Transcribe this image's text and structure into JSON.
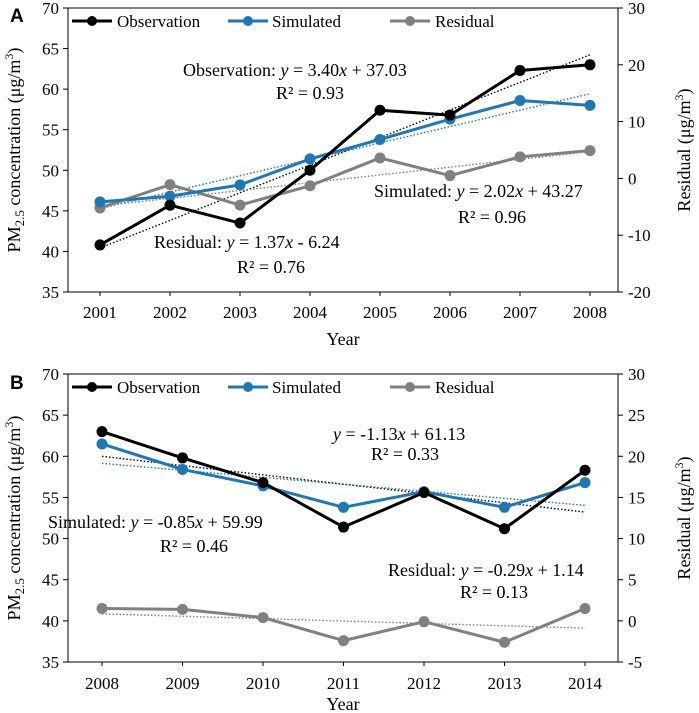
{
  "chart_data": [
    {
      "panel": "A",
      "type": "line",
      "categories": [
        "2001",
        "2002",
        "2003",
        "2004",
        "2005",
        "2006",
        "2007",
        "2008"
      ],
      "xlabel": "Year",
      "ylabel_main": "PM",
      "ylabel_sub": "2.5",
      "ylabel_rest": " concentration (μg/m",
      "ylabel_sup": "3",
      "ylabel_end": ")",
      "ylabel_right": "Residual (μg/m",
      "ylabel_right_sup": "3",
      "ylabel_right_end": ")",
      "ylim": [
        35,
        70
      ],
      "yticks": [
        "35",
        "40",
        "45",
        "50",
        "55",
        "60",
        "65",
        "70"
      ],
      "y2lim": [
        -20,
        30
      ],
      "y2ticks": [
        "-20",
        "-10",
        "0",
        "10",
        "20",
        "30"
      ],
      "series": [
        {
          "name": "Observation",
          "axis": "left",
          "color": "#000000",
          "values": [
            40.8,
            45.7,
            43.5,
            50.0,
            57.4,
            56.8,
            62.3,
            63.0
          ]
        },
        {
          "name": "Simulated",
          "axis": "left",
          "color": "#1f77b4",
          "values": [
            46.1,
            46.8,
            48.2,
            51.4,
            53.8,
            56.3,
            58.6,
            58.0
          ]
        },
        {
          "name": "Residual",
          "axis": "right",
          "color": "#808080",
          "values": [
            -5.2,
            -1.1,
            -4.7,
            -1.3,
            3.6,
            0.5,
            3.8,
            4.9
          ]
        }
      ],
      "trendlines": [
        {
          "series": "Observation",
          "axis": "left",
          "color": "#000000",
          "slope": 3.4,
          "intercept": 37.03
        },
        {
          "series": "Simulated",
          "axis": "left",
          "color": "#1f77b4",
          "slope": 2.02,
          "intercept": 43.27
        },
        {
          "series": "Residual",
          "axis": "right",
          "color": "#808080",
          "slope": 1.37,
          "intercept": -6.24
        }
      ],
      "annotations": [
        {
          "label": "Observation:",
          "eq_slope": "3.40",
          "eq_intercept": "+ 37.03",
          "r2": "R² = 0.93"
        },
        {
          "label": "Simulated:",
          "eq_slope": "2.02",
          "eq_intercept": "+ 43.27",
          "r2": "R² = 0.96"
        },
        {
          "label": "Residual:",
          "eq_slope": "1.37",
          "eq_intercept": "- 6.24",
          "r2": "R² = 0.76"
        }
      ]
    },
    {
      "panel": "B",
      "type": "line",
      "categories": [
        "2008",
        "2009",
        "2010",
        "2011",
        "2012",
        "2013",
        "2014"
      ],
      "xlabel": "Year",
      "ylabel_main": "PM",
      "ylabel_sub": "2.5",
      "ylabel_rest": " concentration (μg/m",
      "ylabel_sup": "3",
      "ylabel_end": ")",
      "ylabel_right": "Residual (μg/m",
      "ylabel_right_sup": "3",
      "ylabel_right_end": ")",
      "ylim": [
        35,
        70
      ],
      "yticks": [
        "35",
        "40",
        "45",
        "50",
        "55",
        "60",
        "65",
        "70"
      ],
      "y2lim": [
        -5,
        30
      ],
      "y2ticks": [
        "-5",
        "0",
        "5",
        "10",
        "15",
        "20",
        "25",
        "30"
      ],
      "series": [
        {
          "name": "Observation",
          "axis": "left",
          "color": "#000000",
          "values": [
            63.0,
            59.8,
            56.8,
            51.4,
            55.6,
            51.2,
            58.3
          ]
        },
        {
          "name": "Simulated",
          "axis": "left",
          "color": "#1f77b4",
          "values": [
            61.5,
            58.4,
            56.4,
            53.8,
            55.7,
            53.8,
            56.8
          ]
        },
        {
          "name": "Residual",
          "axis": "right",
          "color": "#808080",
          "values": [
            1.5,
            1.4,
            0.4,
            -2.4,
            -0.1,
            -2.6,
            1.5
          ]
        }
      ],
      "trendlines": [
        {
          "series": "Observation",
          "axis": "left",
          "color": "#000000",
          "slope": -1.13,
          "intercept": 61.13
        },
        {
          "series": "Simulated",
          "axis": "left",
          "color": "#1f77b4",
          "slope": -0.85,
          "intercept": 59.99
        },
        {
          "series": "Residual",
          "axis": "right",
          "color": "#808080",
          "slope": -0.29,
          "intercept": 1.14
        }
      ],
      "annotations": [
        {
          "label": "",
          "eq_slope": "-1.13",
          "eq_intercept": "+ 61.13",
          "r2": "R² = 0.33"
        },
        {
          "label": "Simulated:",
          "eq_slope": "-0.85",
          "eq_intercept": "+ 59.99",
          "r2": "R² = 0.46"
        },
        {
          "label": "Residual:",
          "eq_slope": "-0.29",
          "eq_intercept": "+ 1.14",
          "r2": "R² = 0.13"
        }
      ]
    }
  ]
}
